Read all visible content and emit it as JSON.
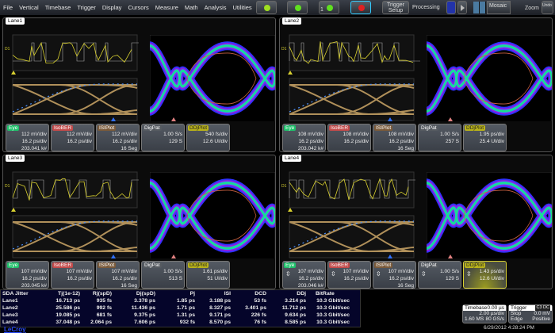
{
  "menu": [
    "File",
    "Vertical",
    "Timebase",
    "Trigger",
    "Display",
    "Cursors",
    "Measure",
    "Math",
    "Analysis",
    "Utilities",
    "Help"
  ],
  "toolbar": {
    "trigger_setup": "Trigger Setup",
    "processing": "Processing",
    "layout": "Mosaic",
    "zoom": "Zoom",
    "undo": "Undo",
    "mode_badge": "1"
  },
  "colors": {
    "eye": "#1fc06a",
    "isober": "#c24a4a",
    "isiplot": "#7a5a3a",
    "digpat": "#555a60",
    "ddjplot": "#b8b21a",
    "waveform": "#d8d030",
    "isi": "#b0905a"
  },
  "lanes": [
    {
      "name": "Lane1",
      "eye": [
        "112 mV/div",
        "16.2 ps/div",
        "203.041 k#"
      ],
      "isober": [
        "112 mV/div",
        "16.2 ps/div"
      ],
      "isiplot": [
        "112 mV/div",
        "16.2 ps/div",
        "16 Seg"
      ],
      "digpat": [
        "1.00 S/s",
        "129 S"
      ],
      "ddjplot": [
        "540 fs/div",
        "12.6 UI/div"
      ]
    },
    {
      "name": "Lane2",
      "eye": [
        "108 mV/div",
        "16.2 ps/div",
        "203.042 k#"
      ],
      "isober": [
        "108 mV/div",
        "16.2 ps/div"
      ],
      "isiplot": [
        "108 mV/div",
        "16.2 ps/div",
        "16 Seg"
      ],
      "digpat": [
        "1.00 S/s",
        "257 S"
      ],
      "ddjplot": [
        "1.95 ps/div",
        "25.4 UI/div"
      ]
    },
    {
      "name": "Lane3",
      "eye": [
        "107 mV/div",
        "16.2 ps/div",
        "203.045 k#"
      ],
      "isober": [
        "107 mV/div",
        "16.2 ps/div"
      ],
      "isiplot": [
        "107 mV/div",
        "16.2 ps/div",
        "16 Seg"
      ],
      "digpat": [
        "1.00 S/s",
        "513 S"
      ],
      "ddjplot": [
        "1.61 ps/div",
        "51 UI/div"
      ]
    },
    {
      "name": "Lane4",
      "eye": [
        "107 mV/div",
        "16.2 ps/div",
        "203.046 k#"
      ],
      "isober": [
        "107 mV/div",
        "16.2 ps/div"
      ],
      "isiplot": [
        "107 mV/div",
        "16.2 ps/div",
        "16 Seg"
      ],
      "digpat": [
        "1.00 S/s",
        "129 S"
      ],
      "ddjplot": [
        "1.43 ps/div",
        "12.6 UI/div"
      ]
    }
  ],
  "tile_labels": {
    "eye": "Eye",
    "isober": "IsoBER",
    "isiplot": "ISIPlot",
    "digpat": "DigPat",
    "ddjplot": "DDjPlot"
  },
  "jitter_table": {
    "headers": [
      "SDA Jitter",
      "Tj(1e-12)",
      "Rj(spD)",
      "Dj(spD)",
      "Pj",
      "ISI",
      "DCD",
      "DDj",
      "BitRate"
    ],
    "rows": [
      [
        "Lane1",
        "16.713 ps",
        "935 fs",
        "3.378 ps",
        "1.85 ps",
        "3.188 ps",
        "53 fs",
        "3.214 ps",
        "10.3 Gbit/sec"
      ],
      [
        "Lane2",
        "25.586 ps",
        "992 fs",
        "11.436 ps",
        "1.71 ps",
        "8.327 ps",
        "3.401 ps",
        "11.712 ps",
        "10.3 Gbit/sec"
      ],
      [
        "Lane3",
        "19.085 ps",
        "681 fs",
        "9.375 ps",
        "1.31 ps",
        "9.171 ps",
        "226 fs",
        "9.634 ps",
        "10.3 Gbit/sec"
      ],
      [
        "Lane4",
        "37.048 ps",
        "2.064 ps",
        "7.606 ps",
        "932 fs",
        "8.570 ps",
        "76 fs",
        "8.585 ps",
        "10.3 Gbit/sec"
      ]
    ]
  },
  "timebase": {
    "label": "Timebase",
    "delay": "0.00 µs",
    "scale": "2.00 µs/div",
    "samples": "1.60 MS",
    "rate": "80 GS/s"
  },
  "trigger": {
    "label": "Trigger",
    "channel": "C3 DC",
    "mode": "Stop",
    "level": "0.0 mV",
    "type": "Edge",
    "slope": "Positive"
  },
  "datetime": "6/29/2012 4:28:24 PM",
  "brand": "LeCroy"
}
